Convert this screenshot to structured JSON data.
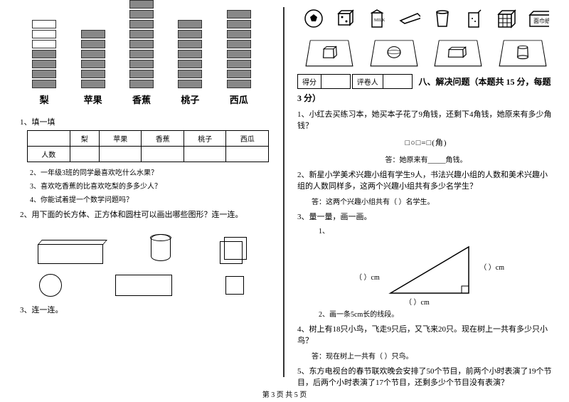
{
  "footer": "第 3 页 共 5 页",
  "left": {
    "chart": {
      "fruits": [
        "梨",
        "苹果",
        "香蕉",
        "桃子",
        "西瓜"
      ],
      "counts": [
        4,
        6,
        9,
        7,
        8
      ],
      "max": 9,
      "block_color": "#888888",
      "border_color": "#333333"
    },
    "q1_num": "1、填一填",
    "table": {
      "row_header": "人数",
      "cols": [
        "梨",
        "苹果",
        "香蕉",
        "桃子",
        "西瓜"
      ]
    },
    "sub2": "2、一年级3班的同学最喜欢吃什么水果？",
    "sub3": "3、喜欢吃香蕉的比喜欢吃梨的多多少人？",
    "sub4": "4、你能试着提一个数学问题吗？",
    "q2": "2、用下面的长方体、正方体和圆柱可以画出哪些图形？连一连。",
    "q3": "3、连一连。"
  },
  "right": {
    "icons": [
      "soccer-ball",
      "dice",
      "milk-carton",
      "eraser",
      "cup",
      "juice-box",
      "rubiks-cube",
      "tissue-box"
    ],
    "tissue_label": "面巾纸",
    "score": {
      "a": "得分",
      "b": "评卷人"
    },
    "section": "八、解决问题（本题共 15 分，每题 3 分）",
    "q1": "1、小红去买练习本，她买本子花了9角钱，还剩下4角钱，她原来有多少角钱？",
    "formula": "□○□=□(角)",
    "ans1": "答：她原来有_____角钱。",
    "q2": "2、新星小学美术兴趣小组有学生9人，书法兴趣小组的人数和美术兴趣小组的人数同样多，这两个兴趣小组共有多少名学生？",
    "ans2": "答：这两个兴趣小组共有（  ）名学生。",
    "q3": "3、量一量，画一画。",
    "q3_1": "1、",
    "tri_labels": {
      "a": "（      ）cm",
      "b": "（      ）cm",
      "c": "（      ）cm"
    },
    "q3_2": "2、画一条5cm长的线段。",
    "q4": "4、树上有18只小鸟，飞走9只后，又飞来20只。现在树上一共有多少只小鸟？",
    "ans4": "答：现在树上一共有（   ）只鸟。",
    "q5": "5、东方电视台的春节联欢晚会安排了50个节目，前两个小时表演了19个节目，后两个小时表演了17个节目，还剩多少个节目没有表演？"
  }
}
